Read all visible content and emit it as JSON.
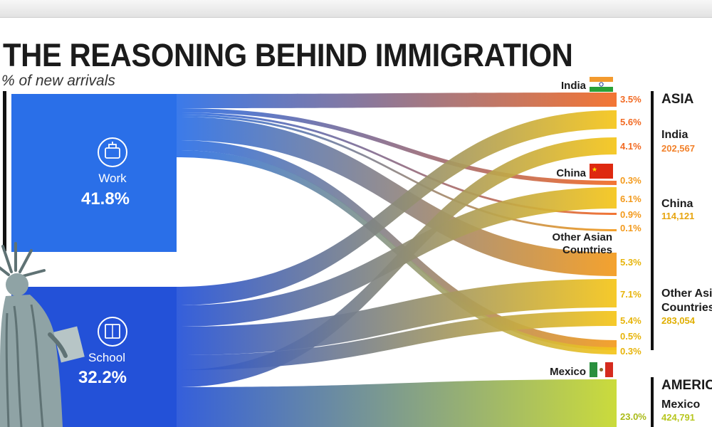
{
  "title": "THE REASONING BEHIND IMMIGRATION",
  "subtitle": "% of new arrivals",
  "chart_data": {
    "type": "sankey",
    "title": "THE REASONING BEHIND IMMIGRATION",
    "subtitle": "% of new arrivals",
    "sources": [
      {
        "id": "work",
        "label": "Work",
        "value_label": "41.8%",
        "value": 41.8,
        "icon": "briefcase-icon",
        "color": "#2a6fe8"
      },
      {
        "id": "school",
        "label": "School",
        "value_label": "32.2%",
        "value": 32.2,
        "icon": "book-icon",
        "color": "#2351d8"
      }
    ],
    "flows": [
      {
        "value": 3.5,
        "label": "3.5%",
        "target": "India",
        "color": "#f26a23"
      },
      {
        "value": 5.6,
        "label": "5.6%",
        "target": "India",
        "color": "#f26a23"
      },
      {
        "value": 4.1,
        "label": "4.1%",
        "target": "India",
        "color": "#f26a23"
      },
      {
        "value": 0.3,
        "label": "0.3%",
        "target": "China",
        "color": "#f39a1c"
      },
      {
        "value": 6.1,
        "label": "6.1%",
        "target": "China",
        "color": "#f39a1c"
      },
      {
        "value": 0.9,
        "label": "0.9%",
        "target": "China",
        "color": "#f39a1c"
      },
      {
        "value": 0.1,
        "label": "0.1%",
        "target": "Other Asian Countries",
        "color": "#f5c518"
      },
      {
        "value": 5.3,
        "label": "5.3%",
        "target": "Other Asian Countries",
        "color": "#f5c518"
      },
      {
        "value": 7.1,
        "label": "7.1%",
        "target": "Other Asian Countries",
        "color": "#f5c518"
      },
      {
        "value": 5.4,
        "label": "5.4%",
        "target": "Other Asian Countries",
        "color": "#f5c518"
      },
      {
        "value": 0.5,
        "label": "0.5%",
        "target": "Other Asian Countries",
        "color": "#f5c518"
      },
      {
        "value": 0.3,
        "label": "0.3%",
        "target": "Other Asian Countries",
        "color": "#f5c518"
      },
      {
        "value": 23.0,
        "label": "23.0%",
        "target": "Mexico",
        "color": "#c6d82b"
      }
    ],
    "country_labels": [
      {
        "name": "India",
        "flag": "india-flag-icon"
      },
      {
        "name": "China",
        "flag": "china-flag-icon"
      },
      {
        "name": "Other Asian\nCountries"
      },
      {
        "name": "Mexico",
        "flag": "mexico-flag-icon"
      }
    ],
    "regions": [
      {
        "name": "ASIA",
        "entries": [
          {
            "name": "India",
            "value": "202,567"
          },
          {
            "name": "China",
            "value": "114,121"
          },
          {
            "name": "Other Asian\nCountries",
            "value": "283,054"
          }
        ]
      },
      {
        "name": "AMERICAS",
        "entries": [
          {
            "name": "Mexico",
            "value": "424,791"
          }
        ]
      }
    ],
    "colors": {
      "asia_value": "#f2812a",
      "americas_value": "#b7c61f",
      "work": "#2a6fe8",
      "school": "#2351d8"
    }
  }
}
